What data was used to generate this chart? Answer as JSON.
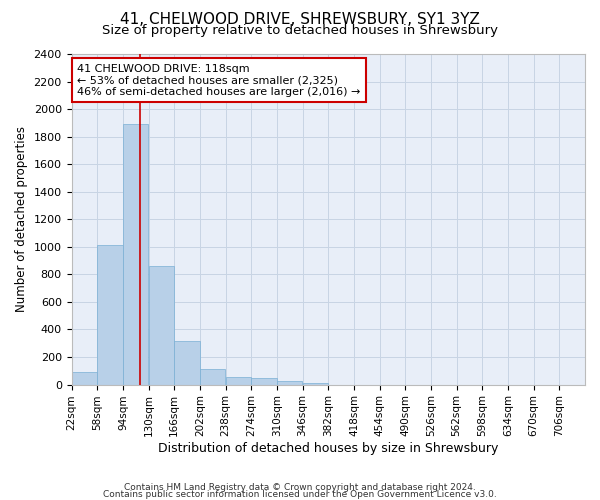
{
  "title": "41, CHELWOOD DRIVE, SHREWSBURY, SY1 3YZ",
  "subtitle": "Size of property relative to detached houses in Shrewsbury",
  "xlabel": "Distribution of detached houses by size in Shrewsbury",
  "ylabel": "Number of detached properties",
  "bar_color": "#b8d0e8",
  "bar_edge_color": "#7aafd4",
  "background_color": "#ffffff",
  "plot_bg_color": "#e8eef8",
  "grid_color": "#c8d4e4",
  "annotation_line_color": "#cc0000",
  "annotation_box_edgecolor": "#cc0000",
  "annotation_text_line1": "41 CHELWOOD DRIVE: 118sqm",
  "annotation_text_line2": "← 53% of detached houses are smaller (2,325)",
  "annotation_text_line3": "46% of semi-detached houses are larger (2,016) →",
  "property_size": 118,
  "bin_edges": [
    22,
    58,
    94,
    130,
    166,
    202,
    238,
    274,
    310,
    346,
    382,
    418,
    454,
    490,
    526,
    562,
    598,
    634,
    670,
    706,
    742
  ],
  "bin_heights": [
    95,
    1010,
    1890,
    860,
    315,
    115,
    55,
    45,
    25,
    15,
    0,
    0,
    0,
    0,
    0,
    0,
    0,
    0,
    0,
    0
  ],
  "ylim": [
    0,
    2400
  ],
  "yticks": [
    0,
    200,
    400,
    600,
    800,
    1000,
    1200,
    1400,
    1600,
    1800,
    2000,
    2200,
    2400
  ],
  "footer_line1": "Contains HM Land Registry data © Crown copyright and database right 2024.",
  "footer_line2": "Contains public sector information licensed under the Open Government Licence v3.0.",
  "title_fontsize": 11,
  "subtitle_fontsize": 9.5,
  "xlabel_fontsize": 9,
  "ylabel_fontsize": 8.5,
  "ytick_fontsize": 8,
  "xtick_fontsize": 7.5,
  "annotation_fontsize": 8,
  "footer_fontsize": 6.5
}
